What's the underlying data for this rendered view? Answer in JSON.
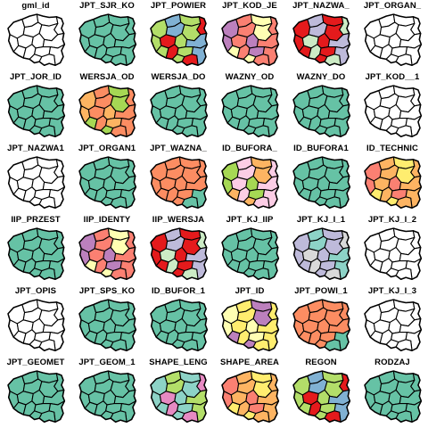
{
  "palettes": {
    "uniform": "#66C2A5",
    "empty": "#FFFFFF",
    "set3": [
      "#8DD3C7",
      "#FFFFB3",
      "#BEBADA",
      "#FB8072",
      "#80B1D3",
      "#FDB462",
      "#B3DE69",
      "#FCCDE5",
      "#D9D9D9",
      "#BC80BD",
      "#CCEBC5",
      "#FFED6F",
      "#E41A1C",
      "#A6D854",
      "#E78AC3",
      "#FC8D62"
    ]
  },
  "panels": [
    {
      "title": "gml_id",
      "fill": "empty"
    },
    {
      "title": "JPT_SJR_KO",
      "fill": "uniform"
    },
    {
      "title": "JPT_POWIER",
      "fill": "multi"
    },
    {
      "title": "JPT_KOD_JE",
      "fill": "multi"
    },
    {
      "title": "JPT_NAZWA_",
      "fill": "multi"
    },
    {
      "title": "JPT_ORGAN_",
      "fill": "empty"
    },
    {
      "title": "JPT_JOR_ID",
      "fill": "uniform"
    },
    {
      "title": "WERSJA_OD",
      "fill": "multi"
    },
    {
      "title": "WERSJA_DO",
      "fill": "uniform"
    },
    {
      "title": "WAZNY_OD",
      "fill": "uniform"
    },
    {
      "title": "WAZNY_DO",
      "fill": "uniform"
    },
    {
      "title": "JPT_KOD__1",
      "fill": "empty"
    },
    {
      "title": "JPT_NAZWA1",
      "fill": "empty"
    },
    {
      "title": "JPT_ORGAN1",
      "fill": "uniform"
    },
    {
      "title": "JPT_WAZNA_",
      "fill": "red"
    },
    {
      "title": "ID_BUFORA_",
      "fill": "multi"
    },
    {
      "title": "ID_BUFORA1",
      "fill": "uniform"
    },
    {
      "title": "ID_TECHNIC",
      "fill": "multi"
    },
    {
      "title": "IIP_PRZEST",
      "fill": "uniform"
    },
    {
      "title": "IIP_IDENTY",
      "fill": "multi"
    },
    {
      "title": "IIP_WERSJA",
      "fill": "multi"
    },
    {
      "title": "JPT_KJ_IIP",
      "fill": "uniform"
    },
    {
      "title": "JPT_KJ_I_1",
      "fill": "multi"
    },
    {
      "title": "JPT_KJ_I_2",
      "fill": "empty"
    },
    {
      "title": "JPT_OPIS",
      "fill": "empty"
    },
    {
      "title": "JPT_SPS_KO",
      "fill": "uniform"
    },
    {
      "title": "ID_BUFOR_1",
      "fill": "uniform"
    },
    {
      "title": "JPT_ID",
      "fill": "multi"
    },
    {
      "title": "JPT_POWI_1",
      "fill": "red"
    },
    {
      "title": "JPT_KJ_I_3",
      "fill": "empty"
    },
    {
      "title": "JPT_GEOMET",
      "fill": "uniform"
    },
    {
      "title": "JPT_GEOM_1",
      "fill": "uniform"
    },
    {
      "title": "SHAPE_LENG",
      "fill": "multi"
    },
    {
      "title": "SHAPE_AREA",
      "fill": "multi"
    },
    {
      "title": "REGON",
      "fill": "multi"
    },
    {
      "title": "RODZAJ",
      "fill": "uniform"
    }
  ]
}
